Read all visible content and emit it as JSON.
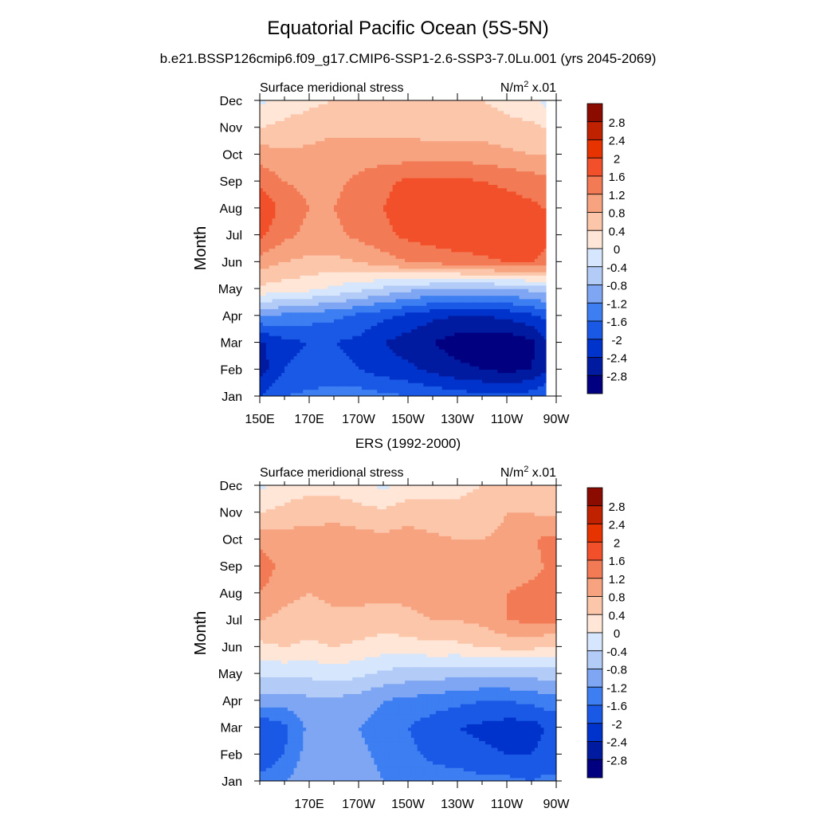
{
  "main_title": "Equatorial Pacific Ocean (5S-5N)",
  "subtitle": "b.e21.BSSP126cmip6.f09_g17.CMIP6-SSP1-2.6-SSP3-7.0Lu.001 (yrs 2045-2069)",
  "panel2_title": "ERS (1992-2000)",
  "colors": {
    "levels": [
      "#000080",
      "#001aa0",
      "#0033cc",
      "#1a59e6",
      "#3d7ff2",
      "#7fa6f2",
      "#b2cbf7",
      "#d6e6fc",
      "#ffe6d6",
      "#fcc6ab",
      "#f7a380",
      "#f27a55",
      "#f2502a",
      "#e63300",
      "#c02200",
      "#8c0b00"
    ]
  },
  "chart_data": [
    {
      "type": "heatmap",
      "panel": "model",
      "title_left": "Surface meridional stress",
      "title_right": "N/m",
      "units_sup": "2",
      "units_scale": " x.01",
      "ylabel": "Month",
      "y_tick_labels": [
        "Jan",
        "Feb",
        "Mar",
        "Apr",
        "May",
        "Jun",
        "Jul",
        "Aug",
        "Sep",
        "Oct",
        "Nov",
        "Dec"
      ],
      "x_tick_labels": [
        "150E",
        "170E",
        "170W",
        "150W",
        "130W",
        "110W",
        "90W"
      ],
      "x_tick_positions": [
        150,
        170,
        190,
        210,
        230,
        250,
        270
      ],
      "xlim": [
        150,
        270
      ],
      "lon": [
        150,
        160,
        170,
        180,
        190,
        200,
        210,
        220,
        230,
        240,
        250,
        260,
        265
      ],
      "grid": [
        [
          -2.0,
          -1.6,
          -1.5,
          -1.4,
          -1.4,
          -1.5,
          -1.6,
          -1.7,
          -1.8,
          -1.9,
          -1.9,
          -1.8,
          -1.6
        ],
        [
          -2.6,
          -2.0,
          -1.9,
          -1.9,
          -2.0,
          -2.2,
          -2.3,
          -2.5,
          -2.7,
          -2.8,
          -2.9,
          -2.8,
          -2.5
        ],
        [
          -2.5,
          -2.1,
          -2.0,
          -2.0,
          -2.1,
          -2.4,
          -2.6,
          -2.8,
          -3.0,
          -3.1,
          -3.1,
          -2.9,
          -2.5
        ],
        [
          -1.2,
          -1.3,
          -1.4,
          -1.5,
          -1.7,
          -1.9,
          -2.1,
          -2.3,
          -2.4,
          -2.4,
          -2.3,
          -2.1,
          -1.9
        ],
        [
          0.3,
          0.2,
          0.1,
          -0.1,
          -0.3,
          -0.5,
          -0.7,
          -0.8,
          -0.9,
          -0.9,
          -0.8,
          -0.7,
          -0.6
        ],
        [
          1.0,
          0.8,
          0.7,
          0.7,
          0.8,
          1.0,
          1.2,
          1.3,
          1.4,
          1.5,
          1.6,
          1.6,
          1.5
        ],
        [
          1.7,
          1.3,
          1.1,
          1.1,
          1.3,
          1.5,
          1.7,
          1.8,
          1.9,
          1.9,
          1.9,
          1.8,
          1.7
        ],
        [
          2.0,
          1.4,
          1.2,
          1.2,
          1.4,
          1.6,
          1.8,
          1.9,
          1.9,
          1.9,
          1.8,
          1.7,
          1.6
        ],
        [
          1.5,
          1.2,
          1.1,
          1.1,
          1.3,
          1.5,
          1.7,
          1.7,
          1.7,
          1.6,
          1.5,
          1.4,
          1.3
        ],
        [
          1.0,
          0.9,
          0.9,
          1.0,
          1.0,
          1.0,
          1.0,
          1.0,
          1.0,
          1.0,
          0.9,
          0.8,
          0.8
        ],
        [
          0.4,
          0.5,
          0.6,
          0.7,
          0.7,
          0.7,
          0.7,
          0.6,
          0.6,
          0.6,
          0.5,
          0.5,
          0.4
        ],
        [
          -0.1,
          0.2,
          0.3,
          0.4,
          0.5,
          0.5,
          0.5,
          0.5,
          0.4,
          0.4,
          0.3,
          0.1,
          -0.1
        ]
      ],
      "colorbar": {
        "labels": [
          "2.8",
          "2.4",
          "2",
          "1.6",
          "1.2",
          "0.8",
          "0.4",
          "0",
          "-0.4",
          "-0.8",
          "-1.2",
          "-1.6",
          "-2",
          "-2.4",
          "-2.8"
        ],
        "levels": [
          -2.8,
          -2.4,
          -2.0,
          -1.6,
          -1.2,
          -0.8,
          -0.4,
          0.0,
          0.4,
          0.8,
          1.2,
          1.6,
          2.0,
          2.4,
          2.8
        ]
      }
    },
    {
      "type": "heatmap",
      "panel": "observed",
      "title_left": "Surface meridional stress",
      "title_right": "N/m",
      "units_sup": "2",
      "units_scale": " x.01",
      "ylabel": "Month",
      "y_tick_labels": [
        "Jan",
        "Feb",
        "Mar",
        "Apr",
        "May",
        "Jun",
        "Jul",
        "Aug",
        "Sep",
        "Oct",
        "Nov",
        "Dec"
      ],
      "x_tick_labels": [
        "170E",
        "170W",
        "150W",
        "130W",
        "110W",
        "90W"
      ],
      "x_tick_positions": [
        170,
        190,
        210,
        230,
        250,
        270
      ],
      "xlim": [
        150,
        270
      ],
      "lon": [
        150,
        160,
        170,
        180,
        190,
        200,
        210,
        220,
        230,
        240,
        250,
        260,
        265
      ],
      "grid": [
        [
          -1.4,
          -1.2,
          -0.9,
          -0.8,
          -1.0,
          -1.2,
          -1.3,
          -1.4,
          -1.4,
          -1.5,
          -1.5,
          -1.6,
          -1.5
        ],
        [
          -2.0,
          -1.6,
          -1.0,
          -0.9,
          -1.1,
          -1.3,
          -1.5,
          -1.7,
          -1.8,
          -1.9,
          -2.0,
          -2.0,
          -1.9
        ],
        [
          -2.0,
          -1.7,
          -1.1,
          -1.0,
          -1.2,
          -1.4,
          -1.6,
          -1.8,
          -2.0,
          -2.1,
          -2.2,
          -2.2,
          -2.0
        ],
        [
          -1.0,
          -1.0,
          -0.9,
          -0.9,
          -1.0,
          -1.2,
          -1.3,
          -1.4,
          -1.5,
          -1.6,
          -1.6,
          -1.5,
          -1.4
        ],
        [
          -0.3,
          -0.3,
          -0.3,
          -0.2,
          -0.3,
          -0.5,
          -0.6,
          -0.6,
          -0.7,
          -0.7,
          -0.7,
          -0.7,
          -0.6
        ],
        [
          0.3,
          0.4,
          0.3,
          0.4,
          0.3,
          0.2,
          0.2,
          0.3,
          0.3,
          0.4,
          0.5,
          0.5,
          0.4
        ],
        [
          0.8,
          0.7,
          0.6,
          0.7,
          0.7,
          0.6,
          0.7,
          0.8,
          0.8,
          0.9,
          1.2,
          1.3,
          1.3
        ],
        [
          1.2,
          0.9,
          0.8,
          0.9,
          0.9,
          0.9,
          0.9,
          1.0,
          0.9,
          1.0,
          1.2,
          1.3,
          1.3
        ],
        [
          1.5,
          1.0,
          1.0,
          1.1,
          1.1,
          1.0,
          1.1,
          1.0,
          1.0,
          0.9,
          1.0,
          1.1,
          1.2
        ],
        [
          1.0,
          1.0,
          1.0,
          1.1,
          1.0,
          0.9,
          1.0,
          0.9,
          0.8,
          0.8,
          0.9,
          1.1,
          1.3
        ],
        [
          0.4,
          0.5,
          0.6,
          0.6,
          0.5,
          0.5,
          0.6,
          0.5,
          0.5,
          0.6,
          0.8,
          0.8,
          0.7
        ],
        [
          -0.1,
          0.2,
          0.3,
          0.3,
          0.2,
          -0.1,
          0.2,
          0.3,
          0.3,
          0.4,
          0.5,
          0.5,
          0.4
        ]
      ],
      "colorbar": {
        "labels": [
          "2.8",
          "2.4",
          "2",
          "1.6",
          "1.2",
          "0.8",
          "0.4",
          "0",
          "-0.4",
          "-0.8",
          "-1.2",
          "-1.6",
          "-2",
          "-2.4",
          "-2.8"
        ],
        "levels": [
          -2.8,
          -2.4,
          -2.0,
          -1.6,
          -1.2,
          -0.8,
          -0.4,
          0.0,
          0.4,
          0.8,
          1.2,
          1.6,
          2.0,
          2.4,
          2.8
        ]
      }
    }
  ]
}
